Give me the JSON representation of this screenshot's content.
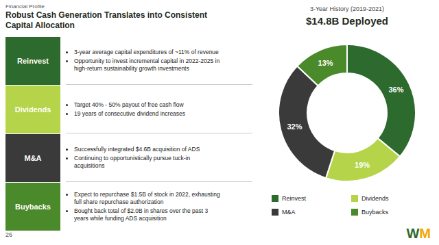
{
  "header": "Financial Profile",
  "title_lines": [
    "Robust Cash Generation Translates into Consistent",
    "Capital Allocation"
  ],
  "table": [
    {
      "label": "Reinvest",
      "color": "#2d6a2d",
      "bullets": [
        "3-year average capital expenditures of ~11% of revenue",
        "Opportunity to invest incremental capital in 2022-2025 in\nhigh-return sustainability growth investments"
      ]
    },
    {
      "label": "Dividends",
      "color": "#b5d44a",
      "bullets": [
        "Target 40% - 50% payout of free cash flow",
        "19 years of consecutive dividend increases"
      ]
    },
    {
      "label": "M&A",
      "color": "#3a3a3a",
      "bullets": [
        "Successfully integrated $4.6B acquisition of ADS",
        "Continuing to opportunistically pursue tuck-in\nacquisitions"
      ]
    },
    {
      "label": "Buybacks",
      "color": "#4a8a2a",
      "bullets": [
        "Expect to repurchase $1.5B of stock in 2022, exhausting\nfull share repurchase authorization",
        "Bought back total of $2.0B in shares over the past 3\nyears while funding ADS acquisition"
      ]
    }
  ],
  "page_number": "26",
  "logo": [
    {
      "text": "W",
      "color": "#2d6a2d"
    },
    {
      "text": "M",
      "color": "#f5a500"
    }
  ],
  "chart_data": {
    "type": "donut",
    "subtitle": "3-Year History (2019-2021)",
    "title": "$14.8B Deployed",
    "categories": [
      "Reinvest",
      "Dividends",
      "M&A",
      "Buybacks"
    ],
    "values": [
      36,
      19,
      32,
      13
    ],
    "value_labels": [
      "36%",
      "19%",
      "32%",
      "13%"
    ],
    "colors": [
      "#2d6a2d",
      "#b5d44a",
      "#3a3a3a",
      "#4a8a2a"
    ],
    "data_labels": true,
    "legend": "bottom"
  }
}
